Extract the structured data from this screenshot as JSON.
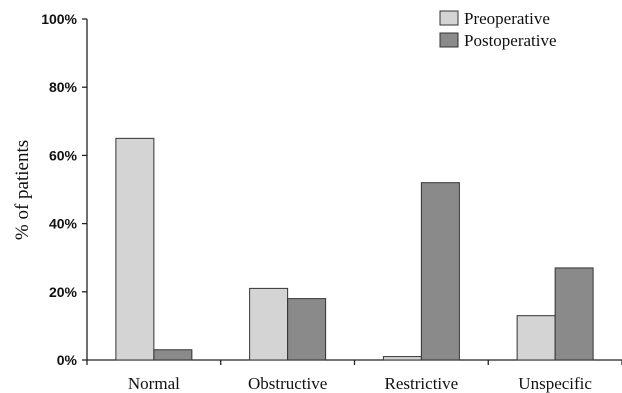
{
  "chart_data": {
    "type": "bar",
    "title": "",
    "xlabel": "",
    "ylabel": "% of patients",
    "ylim": [
      0,
      100
    ],
    "y_ticks": [
      "0%",
      "20%",
      "40%",
      "60%",
      "80%",
      "100%"
    ],
    "y_tick_values": [
      0,
      20,
      40,
      60,
      80,
      100
    ],
    "categories": [
      "Normal",
      "Obstructive",
      "Restrictive",
      "Unspecific"
    ],
    "series": [
      {
        "name": "Preoperative",
        "values": [
          65,
          21,
          1,
          13
        ],
        "color": "#d4d4d4"
      },
      {
        "name": "Postoperative",
        "values": [
          3,
          18,
          52,
          27
        ],
        "color": "#8a8a8a"
      }
    ],
    "legend_position": "top-right",
    "grid": false
  }
}
